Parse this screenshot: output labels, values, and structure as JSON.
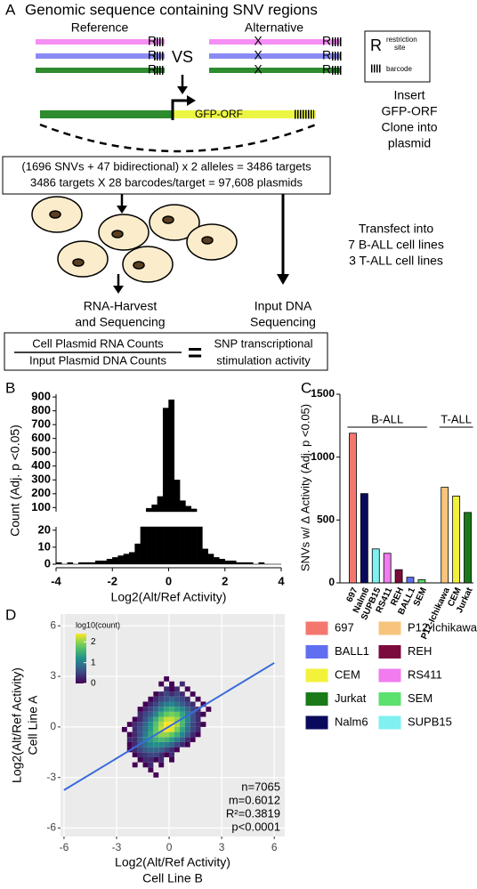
{
  "diagram": {
    "panel_label": "A",
    "title": "Genomic sequence containing SNV regions",
    "reference_label": "Reference",
    "alternative_label": "Alternative",
    "vs": "VS",
    "restriction_mark": "R",
    "snv_mark": "X",
    "key": {
      "symbol": "R",
      "restriction_label": [
        "restriction",
        "site"
      ],
      "barcode_label": "barcode"
    },
    "gfp": "GFP-ORF",
    "insert_text": [
      "Insert",
      "GFP-ORF",
      "Clone into",
      "plasmid"
    ],
    "targets_text": [
      "(1696 SNVs + 47 bidirectional) x 2 alleles = 3486 targets",
      "3486 targets X 28 barcodes/target = 97,608 plasmids"
    ],
    "transfect_text": [
      "Transfect into",
      "7 B-ALL cell lines",
      "3 T-ALL cell lines"
    ],
    "rna_text": [
      "RNA-Harvest",
      "and Sequencing"
    ],
    "dna_text": [
      "Input DNA",
      "Sequencing"
    ],
    "ratio": {
      "numerator": "Cell Plasmid RNA Counts",
      "denominator": "Input Plasmid DNA Counts",
      "equals": "=",
      "result": [
        "SNP transcriptional",
        "stimulation activity"
      ]
    }
  },
  "chart_data": [
    {
      "type": "histogram",
      "panel_label": "B",
      "x_label": "Log2(Alt/Ref Activity)",
      "y_label": "Count (Adj. p <0.05)",
      "bins": [
        -4,
        -3.8,
        -3.6,
        -3.4,
        -3.2,
        -3,
        -2.8,
        -2.6,
        -2.4,
        -2.2,
        -2,
        -1.8,
        -1.6,
        -1.4,
        -1.2,
        -1,
        -0.8,
        -0.6,
        -0.4,
        -0.2,
        0,
        0.2,
        0.4,
        0.6,
        0.8,
        1,
        1.2,
        1.4,
        1.6,
        1.8,
        2,
        2.2,
        2.4,
        2.6,
        2.8,
        3,
        3.2,
        3.4,
        3.6,
        3.8,
        4
      ],
      "values": [
        1,
        0,
        1,
        0,
        1,
        1,
        1,
        2,
        2,
        3,
        4,
        5,
        6,
        7,
        12,
        60,
        95,
        120,
        180,
        820,
        880,
        300,
        150,
        110,
        90,
        30,
        9,
        6,
        4,
        3,
        2,
        2,
        1,
        1,
        1,
        0,
        1,
        0,
        0,
        0
      ],
      "color": "#000000",
      "xlim": [
        -4,
        4
      ],
      "xticks": [
        -4,
        -2,
        0,
        2,
        4
      ],
      "ylim": [
        0,
        920
      ],
      "ybreak": [
        22,
        70
      ],
      "yticks": [
        0,
        10,
        20,
        100,
        200,
        300,
        400,
        500,
        600,
        700,
        800,
        900
      ]
    },
    {
      "type": "bar",
      "panel_label": "C",
      "y_label": "SNVs w/ Δ Activity (Adj. p <0.05)",
      "categories": [
        "697",
        "Nalm6",
        "SUPB15",
        "RS411",
        "REH",
        "BALL1",
        "SEM",
        "P12-Ichikawa",
        "CEM",
        "Jurkat"
      ],
      "values": [
        1190,
        710,
        270,
        235,
        105,
        45,
        25,
        760,
        690,
        560
      ],
      "colors": [
        "#f4776e",
        "#0a0a5c",
        "#80f0f0",
        "#f07cf0",
        "#7b0b3c",
        "#5f6ff0",
        "#5ce06e",
        "#f7c47d",
        "#f2f23a",
        "#1a7a1a"
      ],
      "groups": [
        {
          "name": "B-ALL",
          "categories": [
            "697",
            "Nalm6",
            "SUPB15",
            "RS411",
            "REH",
            "BALL1",
            "SEM"
          ]
        },
        {
          "name": "T-ALL",
          "categories": [
            "P12-Ichikawa",
            "CEM",
            "Jurkat"
          ]
        }
      ],
      "ylim": [
        0,
        1500
      ],
      "yticks": [
        0,
        500,
        1000,
        1500
      ],
      "legend": [
        {
          "name": "697",
          "color": "#f4776e"
        },
        {
          "name": "BALL1",
          "color": "#5f6ff0"
        },
        {
          "name": "CEM",
          "color": "#f2f23a"
        },
        {
          "name": "Jurkat",
          "color": "#1a7a1a"
        },
        {
          "name": "Nalm6",
          "color": "#0a0a5c"
        },
        {
          "name": "P12-Ichikawa",
          "color": "#f7c47d"
        },
        {
          "name": "REH",
          "color": "#7b0b3c"
        },
        {
          "name": "RS411",
          "color": "#f07cf0"
        },
        {
          "name": "SEM",
          "color": "#5ce06e"
        },
        {
          "name": "SUPB15",
          "color": "#80f0f0"
        }
      ]
    },
    {
      "type": "heatmap",
      "panel_label": "D",
      "x_label": [
        "Log2(Alt/Ref Activity)",
        "Cell Line B"
      ],
      "y_label": [
        "Log2(Alt/Ref Activity)",
        "Cell Line A"
      ],
      "colorbar_title": "log10(count)",
      "clim": [
        0,
        2.4
      ],
      "cticks": [
        0,
        1,
        2
      ],
      "xlim": [
        -6.2,
        6.6
      ],
      "xticks": [
        -6,
        -3,
        0,
        3,
        6
      ],
      "ylim": [
        -6.5,
        6.7
      ],
      "yticks": [
        -6,
        -3,
        0,
        3,
        6
      ],
      "grid": true,
      "x_bins": [
        -3,
        -2.7,
        -2.4,
        -2.1,
        -1.8,
        -1.5,
        -1.2,
        -0.9,
        -0.6,
        -0.3,
        0,
        0.3,
        0.6,
        0.9,
        1.2,
        1.5,
        1.8,
        2.1,
        2.4,
        2.7,
        3
      ],
      "y_bins": [
        -3,
        -2.7,
        -2.4,
        -2.1,
        -1.8,
        -1.5,
        -1.2,
        -0.9,
        -0.6,
        -0.3,
        0,
        0.3,
        0.6,
        0.9,
        1.2,
        1.5,
        1.8,
        2.1,
        2.4,
        2.7,
        3
      ],
      "values": [
        [
          null,
          null,
          null,
          null,
          null,
          null,
          null,
          0,
          null,
          null,
          null,
          null,
          null,
          null,
          null,
          null,
          null,
          null,
          null,
          null
        ],
        [
          null,
          null,
          null,
          null,
          null,
          null,
          0,
          null,
          null,
          null,
          null,
          null,
          null,
          null,
          null,
          null,
          null,
          null,
          null,
          null
        ],
        [
          null,
          null,
          null,
          0,
          null,
          0,
          0.3,
          null,
          0,
          null,
          null,
          null,
          null,
          null,
          null,
          null,
          null,
          null,
          null,
          null
        ],
        [
          null,
          null,
          null,
          null,
          0,
          0.3,
          0.3,
          0,
          0.3,
          null,
          0,
          null,
          null,
          null,
          null,
          null,
          null,
          null,
          null,
          null
        ],
        [
          null,
          null,
          null,
          0,
          0.3,
          0.4,
          0.5,
          0.5,
          0.3,
          0,
          0.3,
          null,
          null,
          null,
          null,
          null,
          null,
          null,
          null,
          null
        ],
        [
          null,
          null,
          0,
          0.3,
          0.5,
          0.7,
          0.8,
          0.8,
          0.7,
          0.5,
          0.3,
          0,
          null,
          null,
          null,
          null,
          null,
          null,
          null,
          null
        ],
        [
          null,
          null,
          0,
          0.3,
          0.6,
          0.9,
          1.1,
          1.2,
          1.1,
          1,
          0.8,
          0.5,
          0.3,
          0,
          null,
          null,
          null,
          null,
          null,
          null
        ],
        [
          null,
          null,
          0.3,
          0.3,
          0.7,
          1.1,
          1.3,
          1.5,
          1.6,
          1.5,
          1.3,
          1,
          0.7,
          0.3,
          0,
          null,
          null,
          null,
          null,
          null
        ],
        [
          null,
          null,
          0,
          0.3,
          0.6,
          1,
          1.4,
          1.8,
          2,
          2,
          1.8,
          1.5,
          1.1,
          0.7,
          0.3,
          0,
          null,
          null,
          null,
          null
        ],
        [
          null,
          0,
          null,
          0.3,
          0.6,
          0.9,
          1.3,
          1.8,
          2.2,
          2.4,
          2.3,
          1.9,
          1.4,
          0.9,
          0.5,
          0.3,
          null,
          null,
          null,
          null
        ],
        [
          null,
          null,
          0,
          0.3,
          0.5,
          0.8,
          1.2,
          1.7,
          2.1,
          2.4,
          2.4,
          2.1,
          1.6,
          1,
          0.5,
          0.3,
          0,
          null,
          null,
          null
        ],
        [
          null,
          null,
          null,
          0,
          0.3,
          0.6,
          1,
          1.5,
          1.9,
          2.2,
          2.2,
          2,
          1.6,
          1.1,
          0.6,
          0.3,
          null,
          null,
          null,
          null
        ],
        [
          null,
          null,
          null,
          null,
          0.3,
          0.5,
          0.7,
          1.1,
          1.5,
          1.8,
          1.9,
          1.8,
          1.4,
          1,
          0.6,
          0.3,
          0,
          null,
          null,
          null
        ],
        [
          null,
          null,
          null,
          null,
          0,
          0.3,
          0.5,
          0.8,
          1.1,
          1.4,
          1.5,
          1.3,
          1.1,
          0.8,
          0.5,
          0.3,
          null,
          0,
          null,
          null
        ],
        [
          null,
          null,
          null,
          null,
          null,
          0,
          0.3,
          0.5,
          0.8,
          1,
          1.1,
          0.9,
          0.7,
          0.5,
          0.3,
          null,
          0,
          null,
          null,
          null
        ],
        [
          null,
          null,
          null,
          null,
          null,
          null,
          0,
          0.3,
          0.5,
          0.6,
          0.8,
          0.6,
          0.5,
          0.3,
          null,
          0,
          null,
          null,
          null,
          null
        ],
        [
          null,
          null,
          null,
          null,
          null,
          null,
          null,
          0,
          0.3,
          0.5,
          0.3,
          0.5,
          0.3,
          null,
          0,
          null,
          null,
          null,
          null,
          null
        ],
        [
          null,
          null,
          null,
          null,
          null,
          null,
          null,
          null,
          null,
          0.3,
          0,
          0.3,
          null,
          0,
          null,
          null,
          null,
          null,
          null,
          null
        ],
        [
          null,
          null,
          null,
          null,
          null,
          null,
          null,
          null,
          0,
          null,
          0,
          null,
          0.3,
          null,
          null,
          null,
          null,
          null,
          null,
          null
        ],
        [
          null,
          null,
          null,
          null,
          null,
          null,
          null,
          null,
          null,
          0,
          null,
          null,
          null,
          null,
          null,
          null,
          null,
          null,
          null,
          null
        ]
      ],
      "fit": {
        "color": "#3a6bdc",
        "x": [
          -6,
          6
        ],
        "y": [
          -3.75,
          3.8
        ]
      },
      "annotations": [
        "n=7065",
        "m=0.6012",
        "R²=0.3819",
        "p<0.0001"
      ]
    }
  ]
}
